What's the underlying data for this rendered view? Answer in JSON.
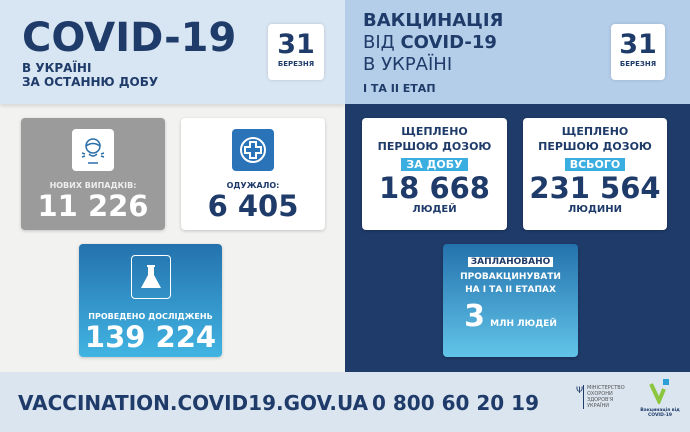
{
  "left_header": {
    "title": "COVID-19",
    "line1": "В УКРАЇНІ",
    "line2": "ЗА ОСТАННЮ ДОБУ",
    "date_day": "31",
    "date_month": "БЕРЕЗНЯ"
  },
  "right_header": {
    "line1": "ВАКЦИНАЦІЯ",
    "line2_prefix": "ВІД ",
    "line2_bold": "COVID-19",
    "line3": "В УКРАЇНІ",
    "line4": "І ТА ІІ ЕТАП",
    "date_day": "31",
    "date_month": "БЕРЕЗНЯ"
  },
  "stats": {
    "new_cases": {
      "label": "НОВИХ ВИПАДКІВ:",
      "value": "11 226",
      "icon": "sneeze-icon"
    },
    "recovered": {
      "label": "ОДУЖАЛО:",
      "value": "6 405",
      "icon": "medical-cross-icon"
    },
    "tests": {
      "label": "ПРОВЕДЕНО ДОСЛІДЖЕНЬ",
      "value": "139 224",
      "icon": "flask-icon"
    }
  },
  "vaccination": {
    "daily": {
      "line1": "ЩЕПЛЕНО",
      "line2": "ПЕРШОЮ ДОЗОЮ",
      "highlight": "ЗА ДОБУ",
      "value": "18 668",
      "unit": "ЛЮДЕЙ"
    },
    "total": {
      "line1": "ЩЕПЛЕНО",
      "line2": "ПЕРШОЮ ДОЗОЮ",
      "highlight": "ВСЬОГО",
      "value": "231 564",
      "unit": "ЛЮДИНИ"
    },
    "planned": {
      "highlight": "ЗАПЛАНОВАНО",
      "line2": "ПРОВАКЦИНУВАТИ",
      "line3": "НА І ТА ІІ ЕТАПАХ",
      "value": "3",
      "unit": "МЛН ЛЮДЕЙ"
    }
  },
  "footer": {
    "url": "VACCINATION.COVID19.GOV.UA",
    "phone": "0 800 60 20 19",
    "moh_logo": "МІНІСТЕРСТВО ОХОРОНИ ЗДОРОВ'Я УКРАЇНИ",
    "vacc_logo": "Вакцинація від COVID-19"
  },
  "colors": {
    "navy": "#1f3b69",
    "accent": "#3aaee0",
    "gray_card": "#9b9b9b"
  }
}
